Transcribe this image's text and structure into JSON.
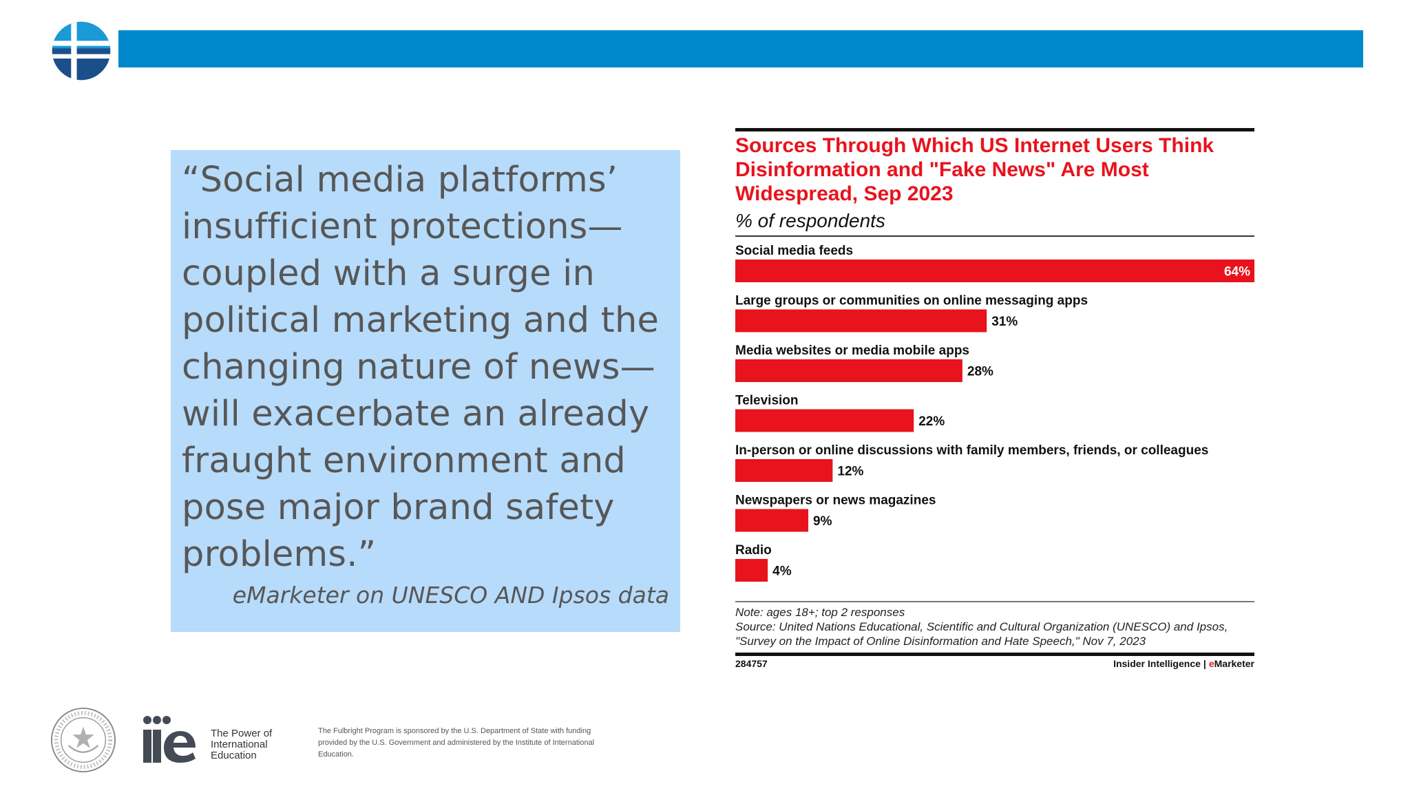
{
  "colors": {
    "brand_bar": "#0088cc",
    "logo_light": "#1a9ad6",
    "logo_dark": "#1b4f8a",
    "quote_bg": "#b7dbfa",
    "quote_text": "#575757",
    "chart_red": "#e8131d"
  },
  "header": {
    "logo_icon": "fulbright-globe-icon"
  },
  "quote": {
    "text": "“Social media platforms’ insufficient protections—coupled with a surge in political marketing and the changing nature of news—will exacerbate an already fraught environment and pose major brand safety problems.”",
    "source": "eMarketer on UNESCO AND Ipsos data"
  },
  "chart_data": {
    "type": "bar",
    "orientation": "horizontal",
    "title": "Sources Through Which US Internet Users Think Disinformation and \"Fake News\" Are Most Widespread, Sep 2023",
    "subtitle": "% of respondents",
    "categories": [
      "Social media feeds",
      "Large groups or communities on online messaging apps",
      "Media websites or media mobile apps",
      "Television",
      "In-person or online discussions with family members, friends, or colleagues",
      "Newspapers or news magazines",
      "Radio"
    ],
    "values": [
      64,
      31,
      28,
      22,
      12,
      9,
      4
    ],
    "value_labels": [
      "64%",
      "31%",
      "28%",
      "22%",
      "12%",
      "9%",
      "4%"
    ],
    "unit": "%",
    "xlim": [
      0,
      64
    ],
    "grid": false,
    "bar_color": "#e8131d",
    "note": "Note: ages 18+; top 2 responses",
    "source": "Source: United Nations Educational, Scientific and Cultural Organization (UNESCO) and Ipsos, \"Survey on the Impact of Online Disinformation and Hate Speech,\" Nov 7, 2023",
    "chart_id": "284757",
    "brand": {
      "left": "Insider Intelligence",
      "separator": "|",
      "right_prefix": "e",
      "right_rest": "Marketer"
    }
  },
  "footer": {
    "seal_icon": "us-department-of-state-seal-icon",
    "iie_logo_text": "iie",
    "iie_tagline": "The Power of International Education",
    "disclaimer": "The Fulbright Program is sponsored by the U.S. Department of State with funding provided by the U.S. Government and administered by the Institute of International Education."
  }
}
